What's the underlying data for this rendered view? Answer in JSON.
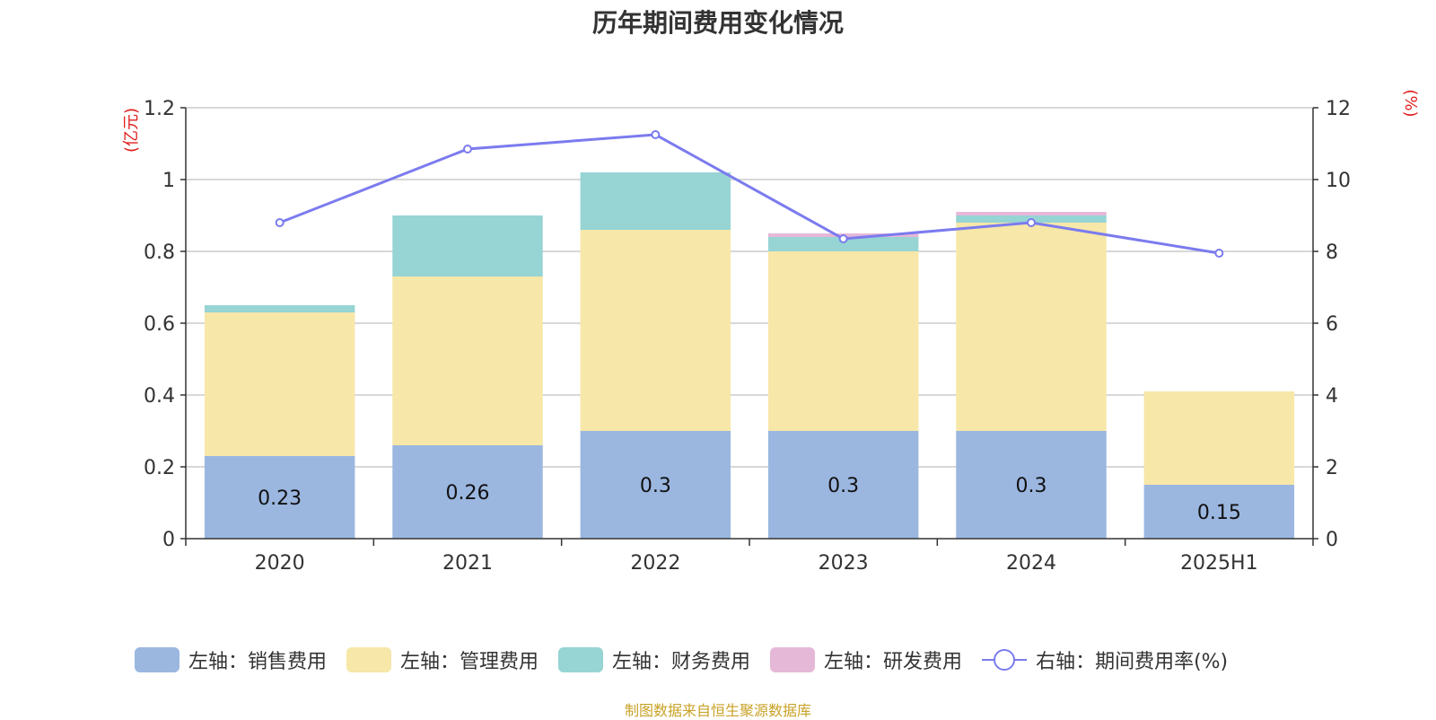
{
  "chart_data": {
    "type": "bar",
    "stacked": true,
    "title": "历年期间费用变化情况",
    "categories": [
      "2020",
      "2021",
      "2022",
      "2023",
      "2024",
      "2025H1"
    ],
    "left_axis_unit": "(亿元)",
    "right_axis_unit": "(%)",
    "ylim_left": [
      0,
      1.2
    ],
    "yticks_left": [
      "0",
      "0.2",
      "0.4",
      "0.6",
      "0.8",
      "1",
      "1.2"
    ],
    "ylim_right": [
      0,
      12
    ],
    "yticks_right": [
      "0",
      "2",
      "4",
      "6",
      "8",
      "10",
      "12"
    ],
    "grid": true,
    "legend_position": "bottom",
    "series": [
      {
        "name": "左轴：销售费用",
        "axis": "left",
        "color": "#9bb7e0",
        "values": [
          0.23,
          0.26,
          0.3,
          0.3,
          0.3,
          0.15
        ],
        "labels": [
          "0.23",
          "0.26",
          "0.3",
          "0.3",
          "0.3",
          "0.15"
        ]
      },
      {
        "name": "左轴：管理费用",
        "axis": "left",
        "color": "#f7e7a8",
        "values": [
          0.4,
          0.47,
          0.56,
          0.5,
          0.58,
          0.26
        ]
      },
      {
        "name": "左轴：财务费用",
        "axis": "left",
        "color": "#97d4d4",
        "values": [
          0.02,
          0.17,
          0.16,
          0.04,
          0.02,
          0
        ]
      },
      {
        "name": "左轴：研发费用",
        "axis": "left",
        "color": "#e6b8d8",
        "values": [
          0,
          0,
          0,
          0.01,
          0.01,
          0
        ]
      },
      {
        "name": "右轴：期间费用率(%)",
        "axis": "right",
        "type": "line",
        "color": "#7b7bef",
        "values": [
          8.8,
          10.85,
          11.25,
          8.35,
          8.8,
          7.95
        ]
      }
    ],
    "source_note": "制图数据来自恒生聚源数据库"
  }
}
